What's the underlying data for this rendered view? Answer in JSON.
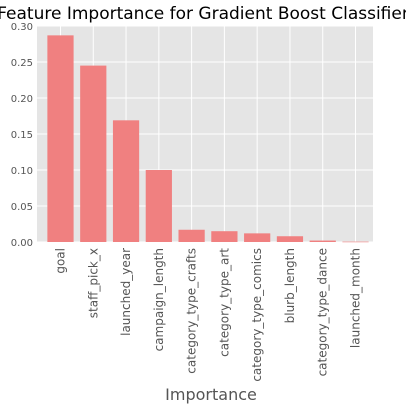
{
  "chart_data": {
    "type": "bar",
    "title": "Feature Importance for Gradient Boost Classifier",
    "xlabel": "Importance",
    "ylabel": "",
    "categories": [
      "goal",
      "staff_pick_x",
      "launched_year",
      "campaign_length",
      "category_type_crafts",
      "category_type_art",
      "category_type_comics",
      "blurb_length",
      "category_type_dance",
      "launched_month"
    ],
    "values": [
      0.287,
      0.245,
      0.169,
      0.1,
      0.017,
      0.015,
      0.012,
      0.008,
      0.002,
      0.0005
    ],
    "ylim": [
      0,
      0.3
    ],
    "yticks": [
      "0.00",
      "0.05",
      "0.10",
      "0.15",
      "0.20",
      "0.25",
      "0.30"
    ],
    "grid": true,
    "bar_color": "#f08080",
    "background_color": "#e5e5e5",
    "grid_color": "#ffffff"
  }
}
